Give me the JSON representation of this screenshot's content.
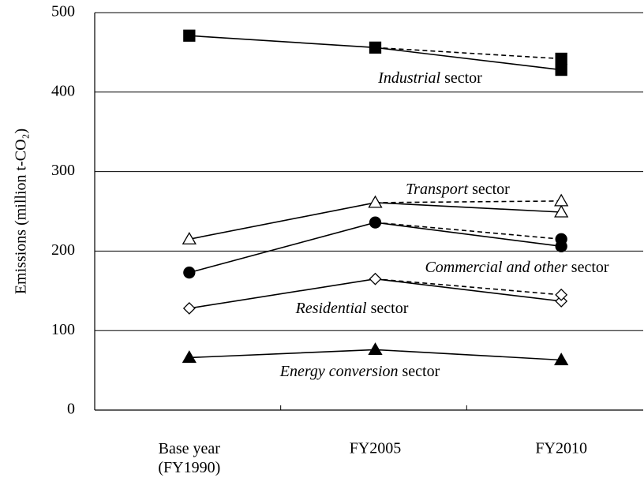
{
  "chart_data": {
    "type": "line",
    "ylabel": "Emissions (million t-CO₂)",
    "categories": [
      "Base year (FY1990)",
      "FY2005",
      "FY2010"
    ],
    "ylim": [
      0,
      500
    ],
    "yticks": [
      0,
      100,
      200,
      300,
      400,
      500
    ],
    "grid": true,
    "series": [
      {
        "color": "#000000",
        "marker": "square",
        "filled": true,
        "dashed": false,
        "values": [
          471,
          456,
          428
        ]
      },
      {
        "color": "#000000",
        "marker": "square",
        "filled": true,
        "dashed": true,
        "values": [
          null,
          456,
          442
        ]
      },
      {
        "color": "#000000",
        "marker": "triangle",
        "filled": false,
        "dashed": false,
        "values": [
          215,
          261,
          249
        ]
      },
      {
        "color": "#000000",
        "marker": "triangle",
        "filled": false,
        "dashed": true,
        "values": [
          null,
          261,
          263
        ]
      },
      {
        "color": "#000000",
        "marker": "circle",
        "filled": true,
        "dashed": false,
        "values": [
          173,
          236,
          206
        ]
      },
      {
        "color": "#000000",
        "marker": "circle",
        "filled": true,
        "dashed": true,
        "values": [
          null,
          236,
          215
        ]
      },
      {
        "color": "#000000",
        "marker": "diamond",
        "filled": false,
        "dashed": false,
        "values": [
          128,
          165,
          137
        ]
      },
      {
        "color": "#000000",
        "marker": "diamond",
        "filled": false,
        "dashed": true,
        "values": [
          null,
          165,
          145
        ]
      },
      {
        "color": "#000000",
        "marker": "triangle",
        "filled": true,
        "dashed": false,
        "values": [
          66,
          76,
          63
        ]
      }
    ],
    "annotations": [
      {
        "italic": "Industrial",
        "text": "sector"
      },
      {
        "italic": "Transport",
        "text": "sector"
      },
      {
        "italic": "Commercial and other",
        "text": "sector"
      },
      {
        "italic": "Residential",
        "text": "sector"
      },
      {
        "italic": "Energy conversion",
        "text": "sector"
      }
    ]
  }
}
